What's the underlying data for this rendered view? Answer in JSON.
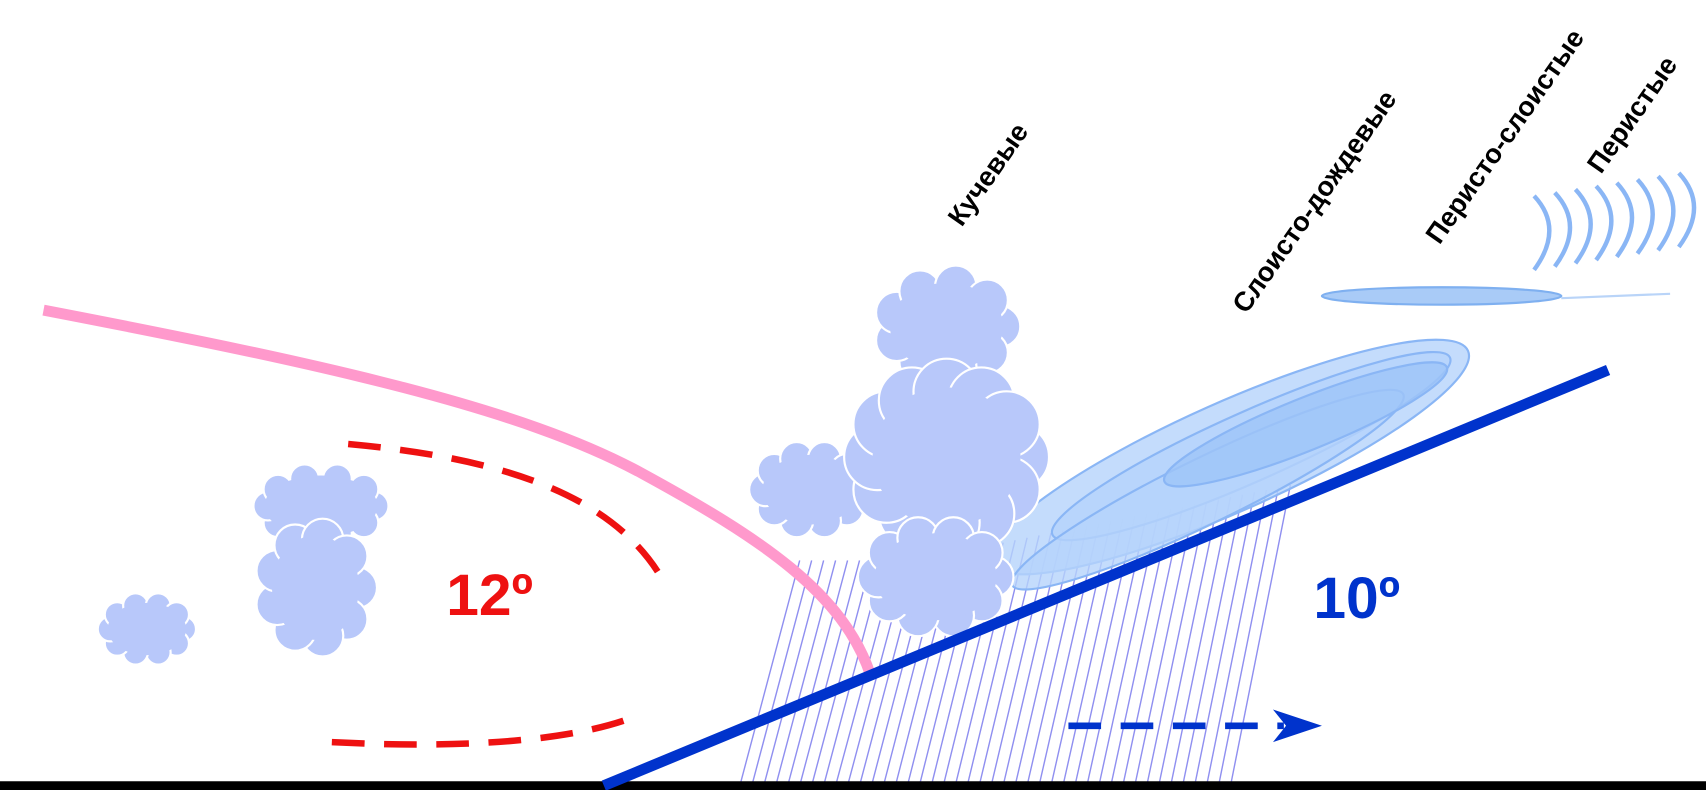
{
  "cloud_labels": [
    "Кучевые",
    "Слоисто-дождевые",
    "Перисто-слоистые",
    "Перистые"
  ],
  "angle_labels": [
    "12º",
    "10º"
  ]
}
